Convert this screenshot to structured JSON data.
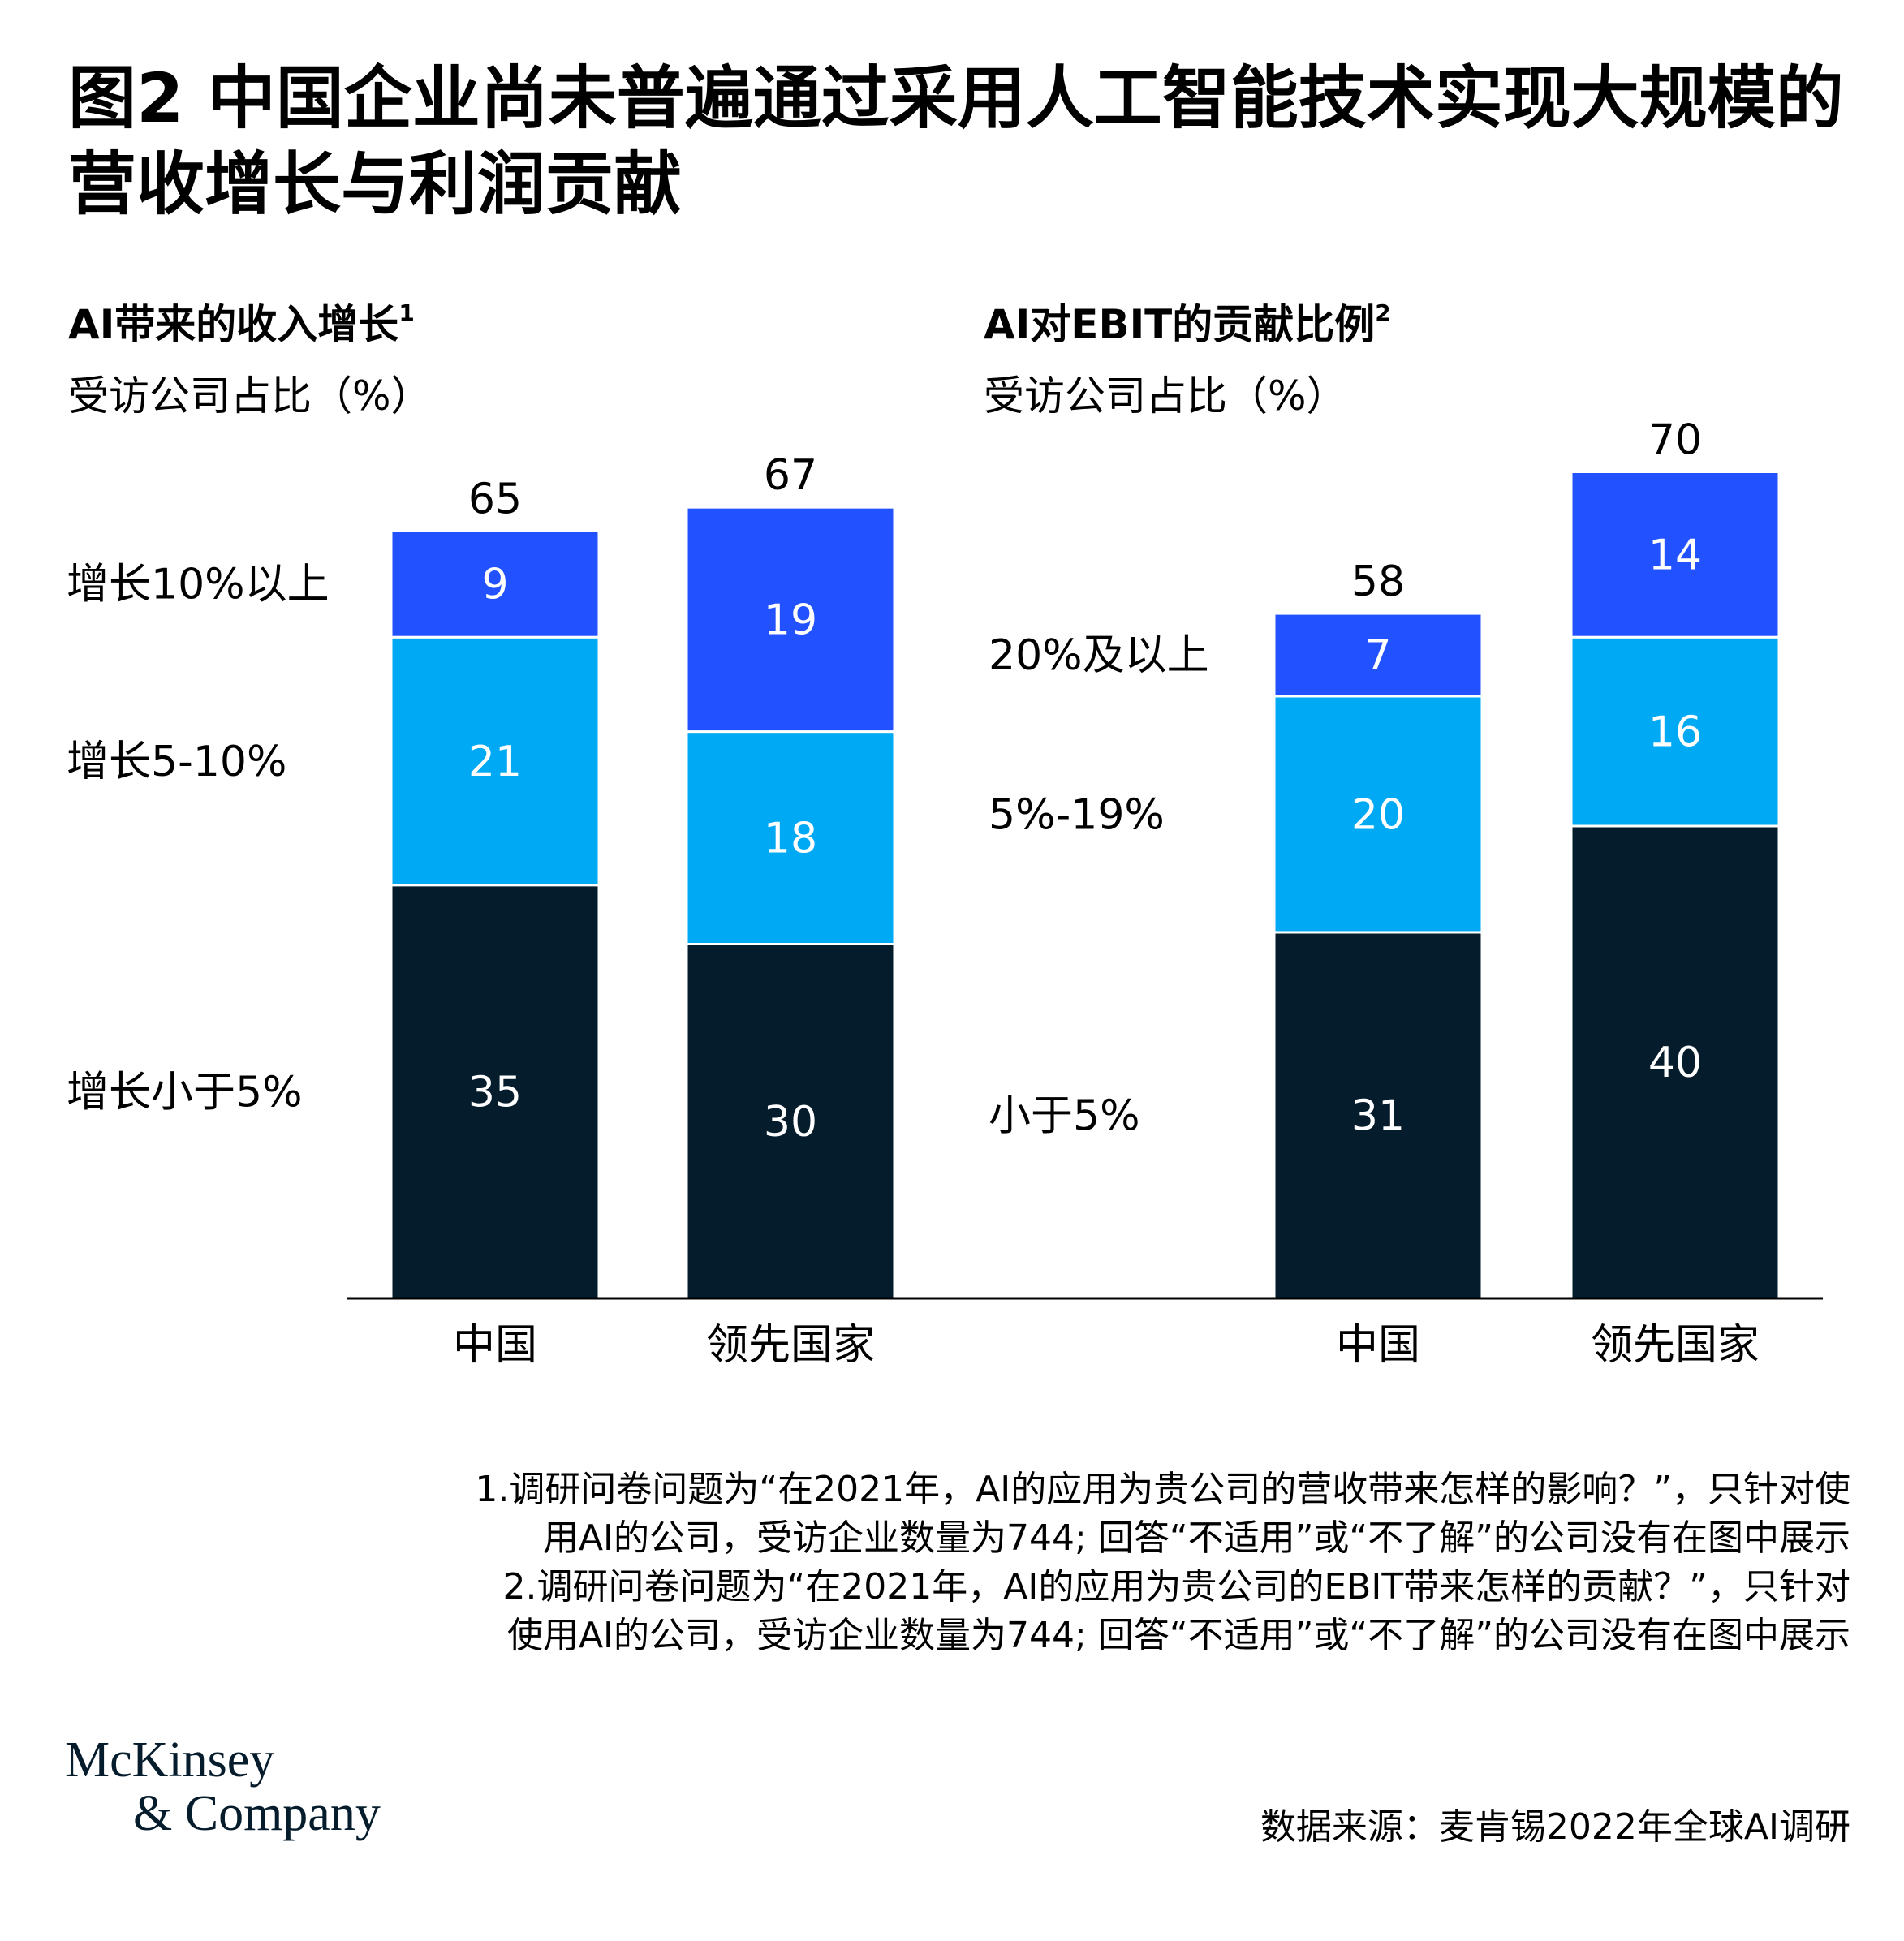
{
  "title": "图2 中国企业尚未普遍通过采用人工智能技术实现大规模的营收增长与利润贡献",
  "chart_data": [
    {
      "type": "bar",
      "stacked": true,
      "title": "AI带来的收入增长",
      "title_sup": "1",
      "subtitle": "受访公司占比（%）",
      "categories": [
        "中国",
        "领先国家"
      ],
      "series": [
        {
          "name": "增长小于5%",
          "color": "#051c2c",
          "values": [
            35,
            30
          ]
        },
        {
          "name": "增长5-10%",
          "color": "#00a9f4",
          "values": [
            21,
            18
          ]
        },
        {
          "name": "增长10%以上",
          "color": "#2251ff",
          "values": [
            9,
            19
          ]
        }
      ],
      "totals": [
        65,
        67
      ]
    },
    {
      "type": "bar",
      "stacked": true,
      "title": "AI对EBIT的贡献比例",
      "title_sup": "2",
      "subtitle": "受访公司占比（%）",
      "categories": [
        "中国",
        "领先国家"
      ],
      "series": [
        {
          "name": "小于5%",
          "color": "#051c2c",
          "values": [
            31,
            40
          ]
        },
        {
          "name": "5%-19%",
          "color": "#00a9f4",
          "values": [
            20,
            16
          ]
        },
        {
          "name": "20%及以上",
          "color": "#2251ff",
          "values": [
            7,
            14
          ]
        }
      ],
      "totals": [
        58,
        70
      ]
    }
  ],
  "notes": [
    "1.调研问卷问题为“在2021年，AI的应用为贵公司的营收带来怎样的影响？”，只针对使用AI的公司，受访企业数量为744; 回答“不适用”或“不了解”的公司没有在图中展示",
    "2.调研问卷问题为“在2021年，AI的应用为贵公司的EBIT带来怎样的贡献？”，只针对使用AI的公司，受访企业数量为744; 回答“不适用”或“不了解”的公司没有在图中展示"
  ],
  "source": "数据来源：麦肯锡2022年全球AI调研",
  "logo": {
    "line1": "McKinsey",
    "line2": "& Company"
  }
}
